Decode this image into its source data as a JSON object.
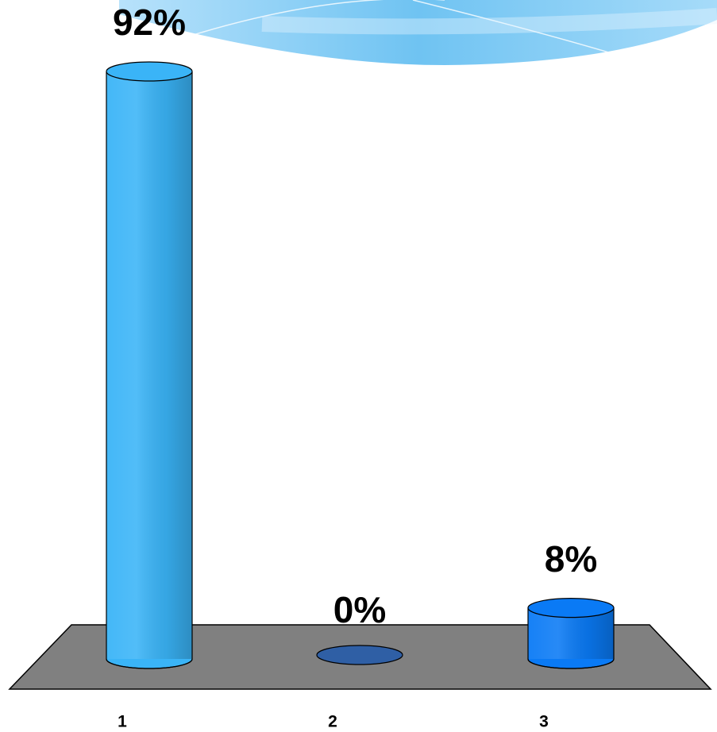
{
  "chart_data": {
    "type": "bar3d",
    "categories": [
      "1",
      "2",
      "3"
    ],
    "values": [
      92,
      0,
      8
    ],
    "value_labels": [
      "92%",
      "0%",
      "8%"
    ],
    "colors": [
      "#3ab4f7",
      "#2f5fa5",
      "#0a7af5"
    ]
  }
}
